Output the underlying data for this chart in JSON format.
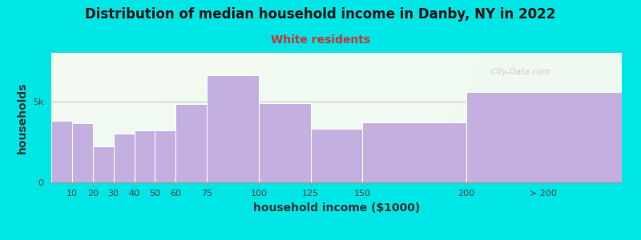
{
  "title": "Distribution of median household income in Danby, NY in 2022",
  "subtitle": "White residents",
  "xlabel": "household income ($1000)",
  "ylabel": "households",
  "background_outer": "#00e5e5",
  "bar_color": "#c4b0e0",
  "bar_edge_color": "#ffffff",
  "values": [
    3800,
    3650,
    2200,
    3000,
    3200,
    3200,
    4850,
    6600,
    4900,
    3300,
    3700,
    5600
  ],
  "ylim": [
    0,
    8000
  ],
  "yticks": [
    0,
    5000
  ],
  "ytick_labels": [
    "0",
    "5k"
  ],
  "title_fontsize": 12,
  "subtitle_fontsize": 10,
  "subtitle_color": "#cc3333",
  "axis_label_fontsize": 10,
  "tick_fontsize": 8,
  "watermark": "City-Data.com",
  "bar_lefts": [
    0,
    10,
    20,
    30,
    40,
    50,
    60,
    75,
    100,
    125,
    150,
    200
  ],
  "bar_widths": [
    10,
    10,
    10,
    10,
    10,
    10,
    15,
    25,
    25,
    25,
    50,
    75
  ],
  "x_tick_positions": [
    10,
    20,
    30,
    40,
    50,
    60,
    75,
    100,
    125,
    150,
    200,
    237
  ],
  "x_tick_labels": [
    "10",
    "20",
    "30",
    "40",
    "50",
    "60",
    "75",
    "100",
    "125",
    "150",
    "200",
    "> 200"
  ],
  "xlim": [
    0,
    275
  ]
}
